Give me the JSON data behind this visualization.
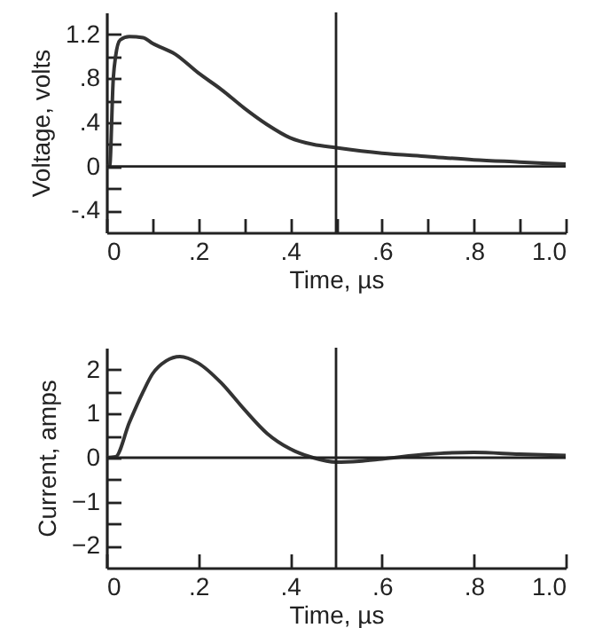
{
  "chart_data": [
    {
      "type": "line",
      "xlabel": "Time, µs",
      "ylabel": "Voltage, volts",
      "xlim": [
        0,
        1.0
      ],
      "ylim": [
        -0.6,
        1.4
      ],
      "xticks": [
        {
          "value": 0,
          "label": "0"
        },
        {
          "value": 0.1,
          "label": null
        },
        {
          "value": 0.2,
          "label": ".2"
        },
        {
          "value": 0.3,
          "label": null
        },
        {
          "value": 0.4,
          "label": ".4"
        },
        {
          "value": 0.5,
          "label": null
        },
        {
          "value": 0.6,
          "label": ".6"
        },
        {
          "value": 0.7,
          "label": null
        },
        {
          "value": 0.8,
          "label": ".8"
        },
        {
          "value": 0.9,
          "label": null
        },
        {
          "value": 1.0,
          "label": "1.0"
        }
      ],
      "yticks": [
        {
          "value": -0.4,
          "label": "-.4"
        },
        {
          "value": -0.2,
          "label": null
        },
        0,
        {
          "value": 0.2,
          "label": null
        },
        {
          "value": 0.4,
          "label": ".4"
        },
        {
          "value": 0.6,
          "label": null
        },
        {
          "value": 0.8,
          "label": ".8"
        },
        {
          "value": 1.0,
          "label": null
        },
        {
          "value": 1.2,
          "label": "1.2"
        }
      ],
      "grid": false,
      "marker": "none",
      "line_style": "solid",
      "ref_lines": [
        {
          "axis": "x",
          "value": 0.5,
          "color": "#222222"
        },
        {
          "axis": "y",
          "value": 0,
          "color": "#222222"
        }
      ],
      "series": [
        {
          "color": "#333333",
          "x": [
            0,
            0.007,
            0.015,
            0.02,
            0.03,
            0.05,
            0.08,
            0.1,
            0.15,
            0.2,
            0.25,
            0.3,
            0.35,
            0.4,
            0.45,
            0.5,
            0.6,
            0.7,
            0.8,
            0.9,
            1.0
          ],
          "values": [
            0,
            0,
            0.8,
            1.0,
            1.15,
            1.18,
            1.17,
            1.12,
            1.02,
            0.85,
            0.7,
            0.53,
            0.38,
            0.26,
            0.2,
            0.17,
            0.12,
            0.09,
            0.06,
            0.04,
            0.02
          ]
        }
      ]
    },
    {
      "type": "line",
      "xlabel": "Time, µs",
      "ylabel": "Current, amps",
      "xlim": [
        0,
        1.0
      ],
      "ylim": [
        -2.5,
        2.5
      ],
      "xticks": [
        {
          "value": 0,
          "label": "0"
        },
        {
          "value": 0.2,
          "label": ".2"
        },
        {
          "value": 0.4,
          "label": ".4"
        },
        {
          "value": 0.6,
          "label": ".6"
        },
        {
          "value": 0.8,
          "label": ".8"
        },
        {
          "value": 1.0,
          "label": "1.0"
        }
      ],
      "yticks": [
        {
          "value": -2,
          "label": "−2"
        },
        {
          "value": -1.5,
          "label": null
        },
        {
          "value": -1,
          "label": "−1"
        },
        {
          "value": -0.5,
          "label": null
        },
        0,
        {
          "value": 0.5,
          "label": null
        },
        1,
        {
          "value": 1.5,
          "label": null
        },
        2
      ],
      "grid": false,
      "marker": "none",
      "line_style": "solid",
      "ref_lines": [
        {
          "axis": "x",
          "value": 0.5,
          "color": "#222222"
        },
        {
          "axis": "y",
          "value": 0,
          "color": "#222222"
        }
      ],
      "series": [
        {
          "color": "#333333",
          "x": [
            0,
            0.02,
            0.05,
            0.08,
            0.1,
            0.13,
            0.16,
            0.2,
            0.25,
            0.3,
            0.35,
            0.4,
            0.45,
            0.5,
            0.55,
            0.6,
            0.7,
            0.8,
            0.9,
            1.0
          ],
          "values": [
            0,
            0.02,
            0.8,
            1.5,
            1.9,
            2.2,
            2.3,
            2.15,
            1.7,
            1.1,
            0.55,
            0.2,
            0.0,
            -0.1,
            -0.08,
            -0.03,
            0.08,
            0.12,
            0.08,
            0.05
          ]
        }
      ]
    }
  ]
}
